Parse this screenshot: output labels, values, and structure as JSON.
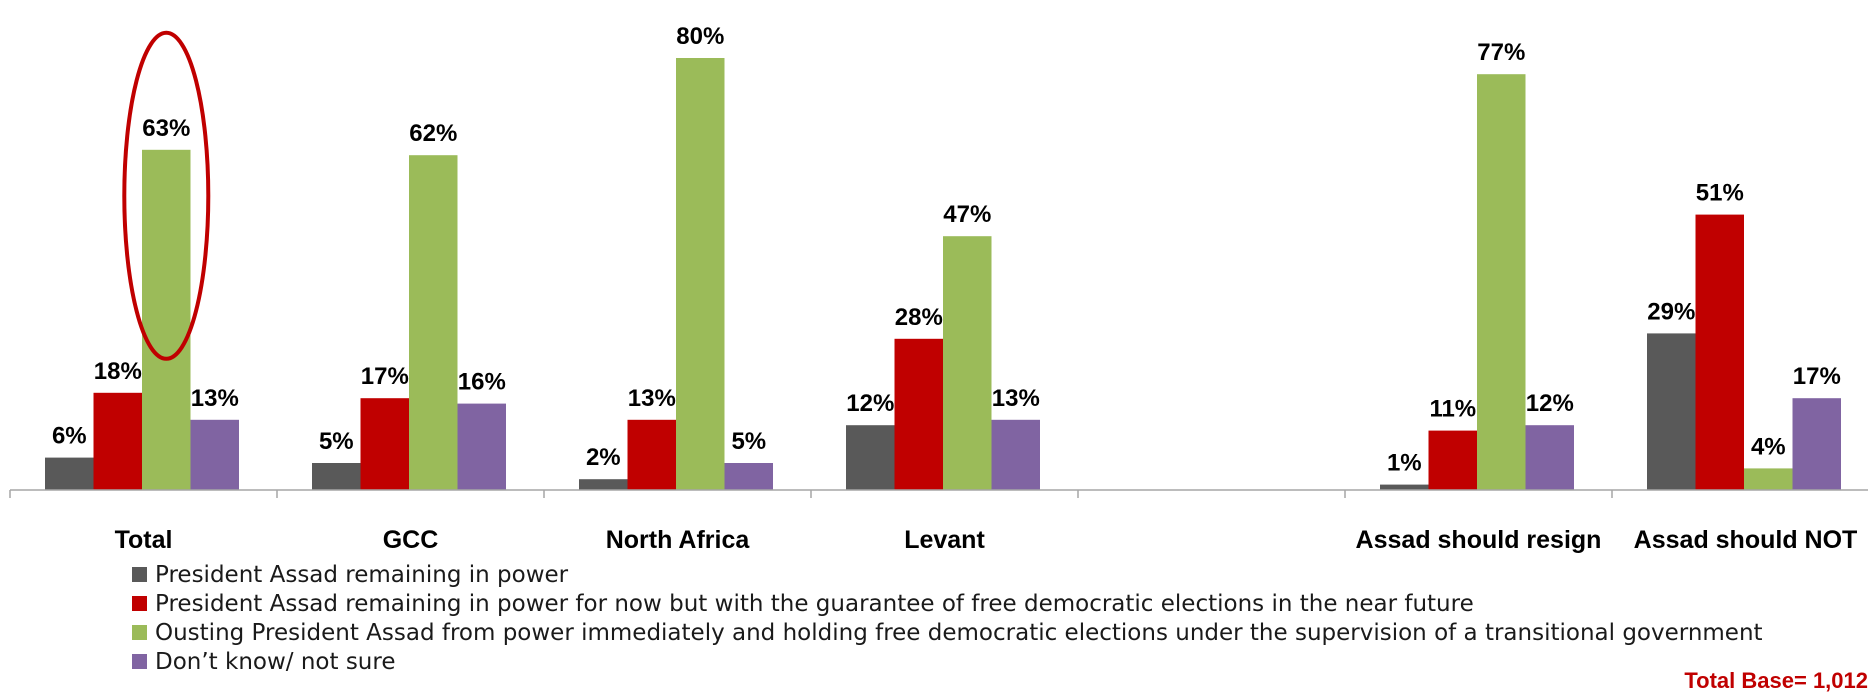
{
  "chart_data": {
    "type": "bar",
    "categories": [
      "Total",
      "GCC",
      "North Africa",
      "Levant",
      "",
      "Assad should resign",
      "Assad should NOT resign"
    ],
    "series": [
      {
        "name": "President Assad remaining in power",
        "color": "#595959",
        "values": [
          6,
          5,
          2,
          12,
          null,
          1,
          29
        ],
        "labels": [
          "6%",
          "5%",
          "2%",
          "12%",
          "",
          "1%",
          "29%"
        ]
      },
      {
        "name": "President Assad remaining in power for now but with the guarantee of free democratic elections in the near future",
        "color": "#c00000",
        "values": [
          18,
          17,
          13,
          28,
          null,
          11,
          51
        ],
        "labels": [
          "18%",
          "17%",
          "13%",
          "28%",
          "",
          "11%",
          "51%"
        ]
      },
      {
        "name": "Ousting President Assad from power immediately and holding free democratic elections under the supervision of a transitional government",
        "color": "#9bbb59",
        "values": [
          63,
          62,
          80,
          47,
          null,
          77,
          4
        ],
        "labels": [
          "63%",
          "62%",
          "80%",
          "47%",
          "",
          "77%",
          "4%"
        ]
      },
      {
        "name": "Don’t know/ not sure",
        "color": "#8064a2",
        "values": [
          13,
          16,
          5,
          13,
          null,
          12,
          17
        ],
        "labels": [
          "13%",
          "16%",
          "5%",
          "13%",
          "",
          "12%",
          "17%"
        ]
      }
    ],
    "ylim": [
      0,
      80
    ],
    "grid": false,
    "legend_position": "bottom-left",
    "highlight": {
      "category": "Total",
      "series": 2,
      "shape": "ellipse",
      "color": "#c00000"
    },
    "note": "Total Base= 1,012"
  }
}
